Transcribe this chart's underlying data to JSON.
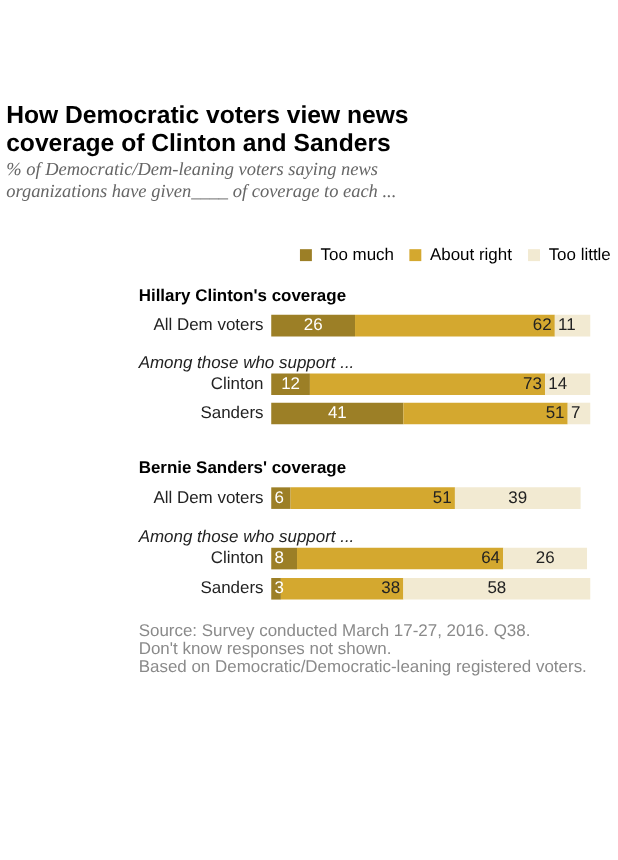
{
  "chart_data": [
    {
      "type": "bar",
      "orientation": "horizontal",
      "stacked": true,
      "data_labels": true,
      "legend": "top right",
      "title": "How Democratic voters view news coverage of Clinton and Sanders",
      "subtitle": "% of Democratic/Dem-leaning voters saying news organizations have given____ of coverage to each ...",
      "categories": [
        "All Dem voters",
        "Clinton",
        "Sanders"
      ],
      "series": [
        {
          "name": "Too much",
          "color": "#9c7f26",
          "values": [
            26,
            12,
            41
          ]
        },
        {
          "name": "About right",
          "color": "#d4a82f",
          "values": [
            62,
            73,
            51
          ]
        },
        {
          "name": "Too little",
          "color": "#f2ead2",
          "values": [
            11,
            14,
            7
          ]
        }
      ],
      "annotations": [
        "Hillary Clinton's coverage",
        "Among those who support ..."
      ]
    },
    {
      "type": "bar",
      "orientation": "horizontal",
      "stacked": true,
      "data_labels": true,
      "title": "Bernie Sanders' coverage",
      "categories": [
        "All Dem voters",
        "Clinton",
        "Sanders"
      ],
      "series": [
        {
          "name": "Too much",
          "color": "#9c7f26",
          "values": [
            6,
            8,
            3
          ]
        },
        {
          "name": "About right",
          "color": "#d4a82f",
          "values": [
            51,
            64,
            38
          ]
        },
        {
          "name": "Too little",
          "color": "#f2ead2",
          "values": [
            39,
            26,
            58
          ]
        }
      ],
      "annotations": [
        "Among those who support ...",
        "Source: Survey conducted March 17-27, 2016. Q38.",
        "Don't know responses not shown.",
        "Based on Democratic/Democratic-leaning registered voters."
      ]
    }
  ]
}
